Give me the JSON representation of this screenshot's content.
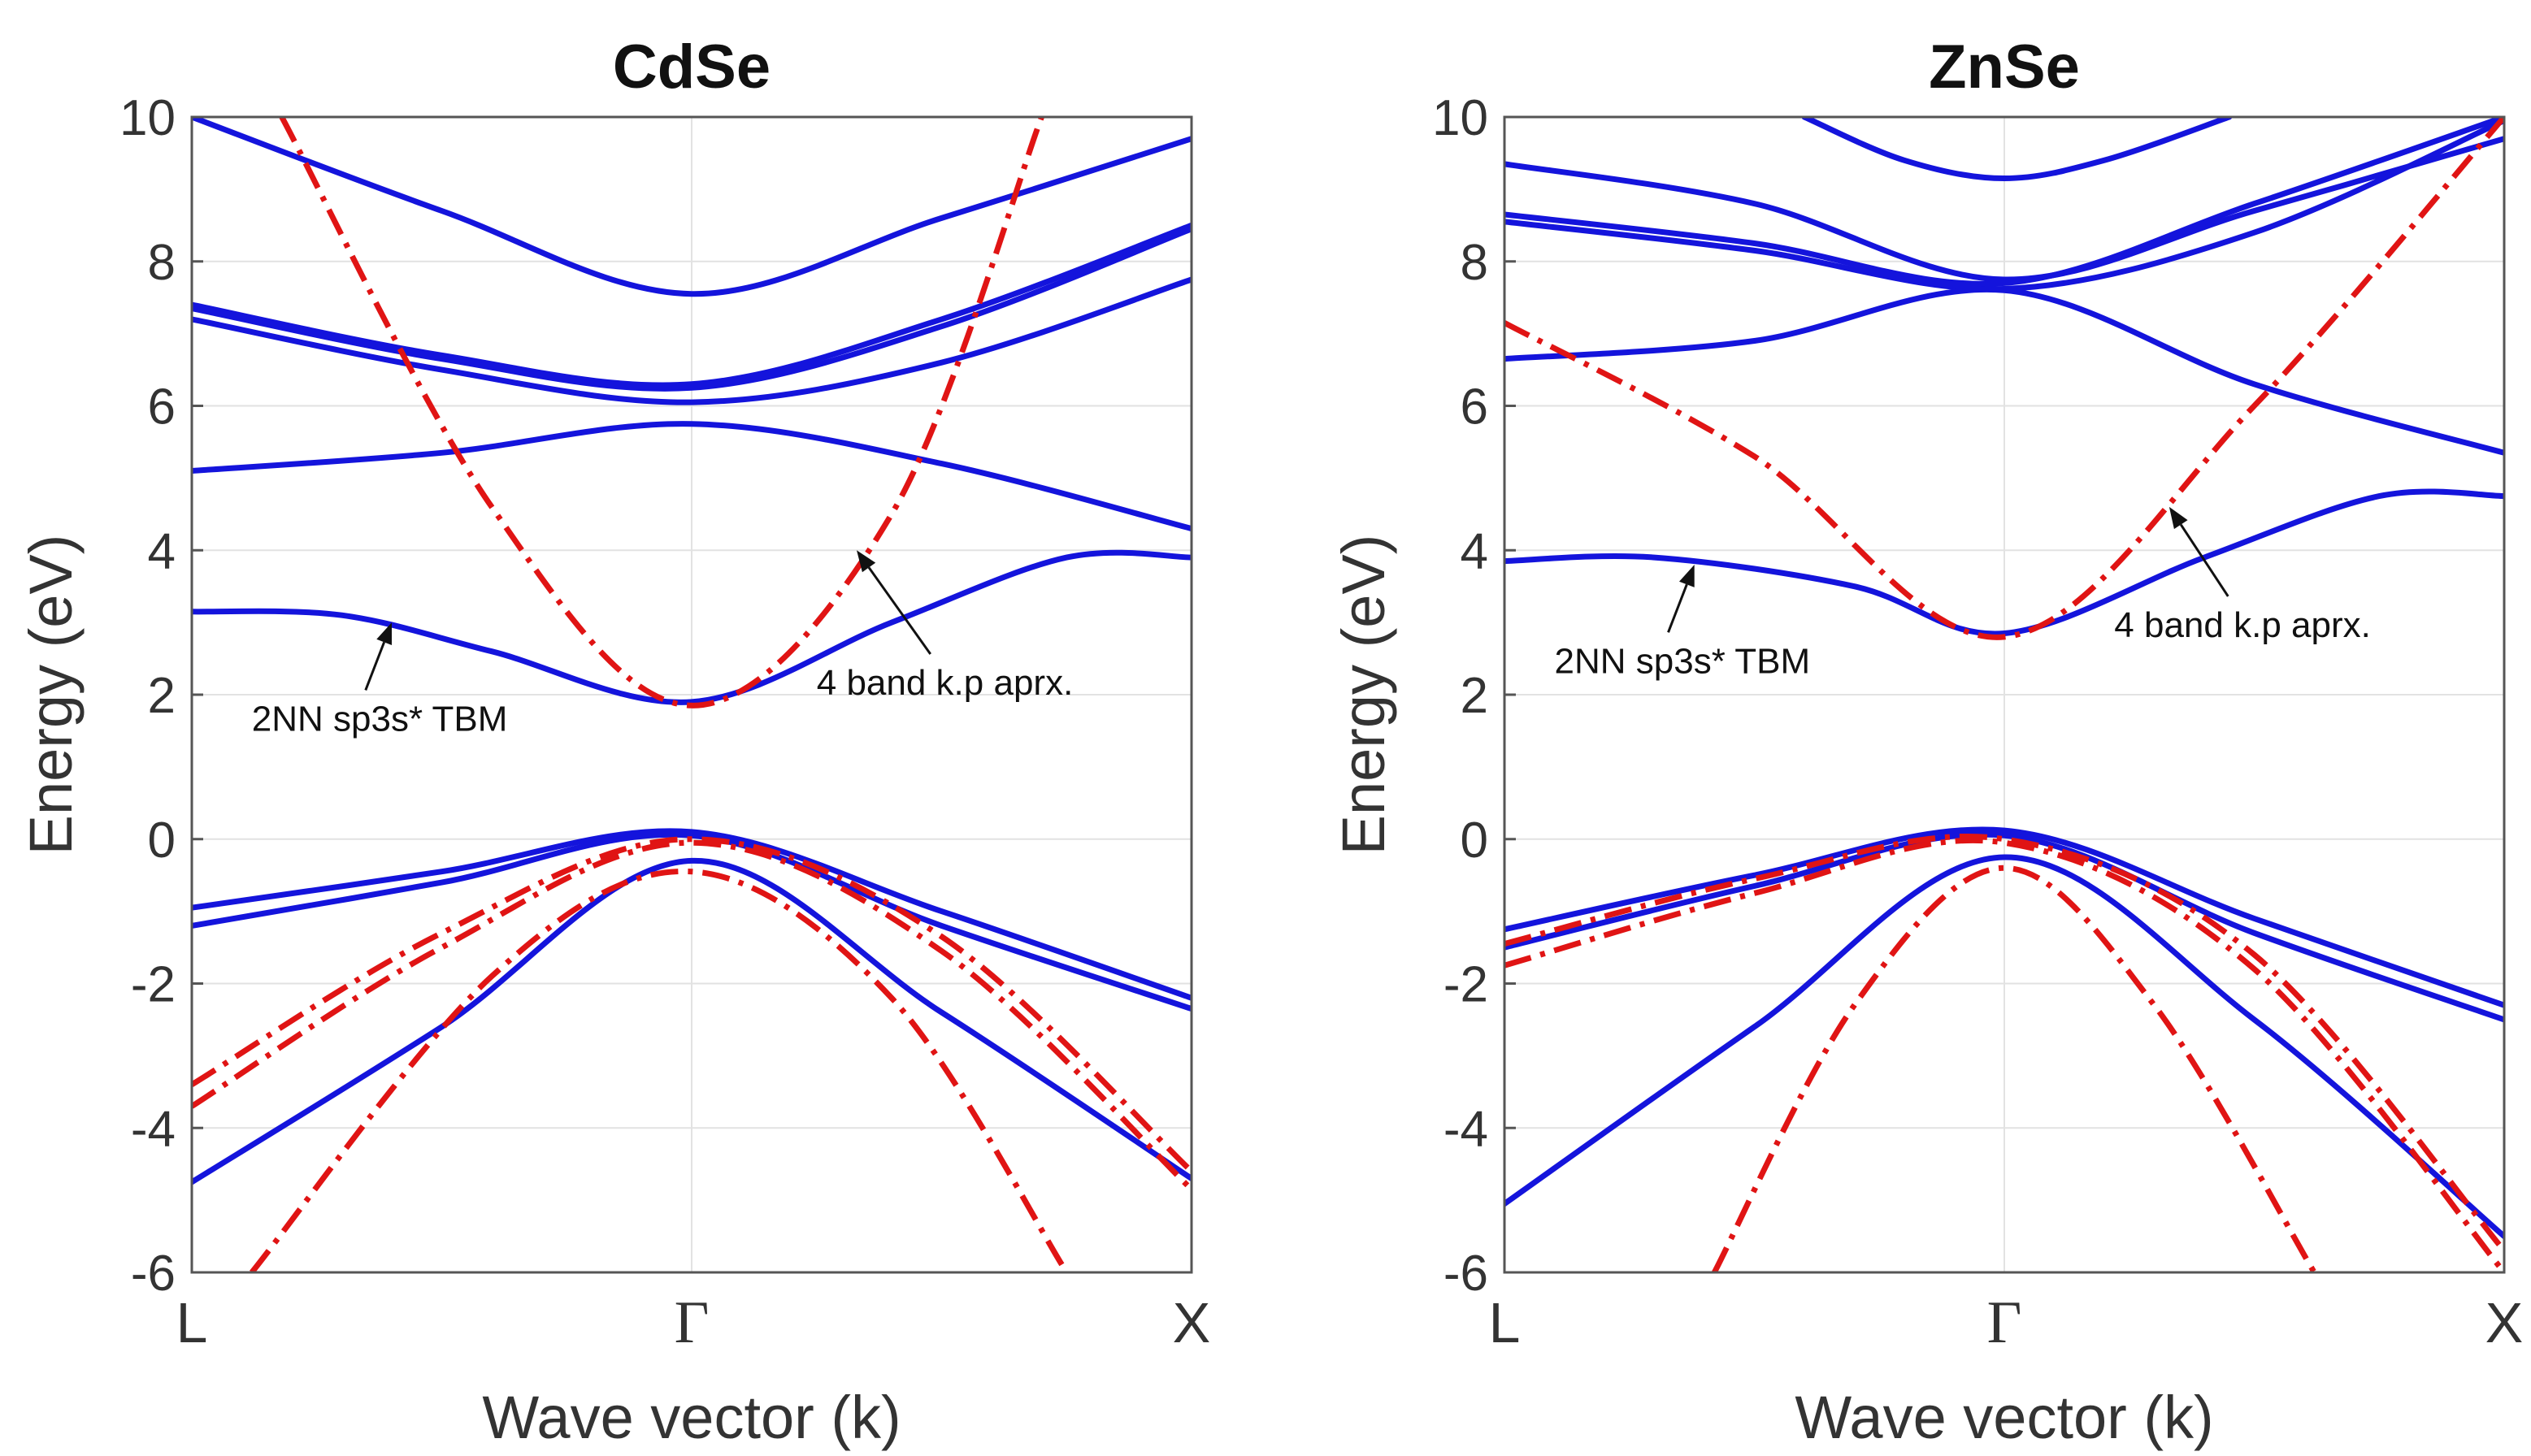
{
  "chart_data": [
    {
      "type": "line",
      "title": "CdSe",
      "xlabel": "Wave vector (k)",
      "ylabel": "Energy (eV)",
      "xlim": [
        0,
        2
      ],
      "ylim": [
        -6,
        10
      ],
      "x_ticks": [
        {
          "x": 0,
          "label": "L"
        },
        {
          "x": 1,
          "label": "Γ"
        },
        {
          "x": 2,
          "label": "X"
        }
      ],
      "y_ticks": [
        10,
        8,
        6,
        4,
        2,
        0,
        -2,
        -4,
        -6
      ],
      "grid": true,
      "series": [
        {
          "name": "2NN sp3s* TBM",
          "style": "solid",
          "color": "#1414dc",
          "bands": [
            [
              [
                0,
                10.0
              ],
              [
                0.5,
                8.7
              ],
              [
                1,
                7.55
              ],
              [
                1.5,
                8.6
              ],
              [
                2,
                9.7
              ]
            ],
            [
              [
                0,
                7.4
              ],
              [
                0.5,
                6.7
              ],
              [
                1,
                6.3
              ],
              [
                1.5,
                7.2
              ],
              [
                2,
                8.5
              ]
            ],
            [
              [
                0,
                7.35
              ],
              [
                0.5,
                6.65
              ],
              [
                1,
                6.25
              ],
              [
                1.5,
                7.1
              ],
              [
                2,
                8.45
              ]
            ],
            [
              [
                0,
                7.2
              ],
              [
                0.5,
                6.5
              ],
              [
                1,
                6.05
              ],
              [
                1.5,
                6.6
              ],
              [
                2,
                7.75
              ]
            ],
            [
              [
                0,
                5.1
              ],
              [
                0.5,
                5.35
              ],
              [
                1,
                5.75
              ],
              [
                1.5,
                5.2
              ],
              [
                2,
                4.3
              ]
            ],
            [
              [
                0,
                3.15
              ],
              [
                0.3,
                3.1
              ],
              [
                0.6,
                2.6
              ],
              [
                1,
                1.9
              ],
              [
                1.4,
                3.0
              ],
              [
                1.75,
                3.9
              ],
              [
                2,
                3.9
              ]
            ],
            [
              [
                0,
                -0.95
              ],
              [
                0.5,
                -0.45
              ],
              [
                1,
                0.1
              ],
              [
                1.5,
                -1.0
              ],
              [
                2,
                -2.2
              ]
            ],
            [
              [
                0,
                -1.2
              ],
              [
                0.5,
                -0.6
              ],
              [
                1,
                0.05
              ],
              [
                1.5,
                -1.2
              ],
              [
                2,
                -2.35
              ]
            ],
            [
              [
                0,
                -4.75
              ],
              [
                0.5,
                -2.6
              ],
              [
                1,
                -0.3
              ],
              [
                1.5,
                -2.4
              ],
              [
                2,
                -4.7
              ]
            ]
          ]
        },
        {
          "name": "4 band k.p aprx.",
          "style": "dashdot",
          "color": "#e01414",
          "bands": [
            [
              [
                0.18,
                10.0
              ],
              [
                0.6,
                4.6
              ],
              [
                1,
                1.85
              ],
              [
                1.4,
                4.5
              ],
              [
                1.7,
                10.0
              ]
            ],
            [
              [
                0,
                -3.4
              ],
              [
                0.5,
                -1.3
              ],
              [
                1,
                0.0
              ],
              [
                1.5,
                -1.35
              ],
              [
                2,
                -4.6
              ]
            ],
            [
              [
                0,
                -3.7
              ],
              [
                0.5,
                -1.5
              ],
              [
                1,
                -0.05
              ],
              [
                1.5,
                -1.55
              ],
              [
                2,
                -4.85
              ]
            ],
            [
              [
                0.12,
                -6.0
              ],
              [
                0.6,
                -1.9
              ],
              [
                1,
                -0.45
              ],
              [
                1.4,
                -2.2
              ],
              [
                1.75,
                -6.0
              ]
            ]
          ]
        }
      ],
      "annotations": [
        {
          "text": "2NN sp3s* TBM",
          "x": 0.4,
          "y": 3.0,
          "label_x": 0.12,
          "label_y": 1.5
        },
        {
          "text": "4 band k.p aprx.",
          "x": 1.33,
          "y": 4.0,
          "label_x": 1.25,
          "label_y": 2.0
        }
      ]
    },
    {
      "type": "line",
      "title": "ZnSe",
      "xlabel": "Wave vector (k)",
      "ylabel": "Energy (eV)",
      "xlim": [
        0,
        2
      ],
      "ylim": [
        -6,
        10
      ],
      "x_ticks": [
        {
          "x": 0,
          "label": "L"
        },
        {
          "x": 1,
          "label": "Γ"
        },
        {
          "x": 2,
          "label": "X"
        }
      ],
      "y_ticks": [
        10,
        8,
        6,
        4,
        2,
        0,
        -2,
        -4,
        -6
      ],
      "grid": true,
      "series": [
        {
          "name": "2NN sp3s* TBM",
          "style": "solid",
          "color": "#1414dc",
          "bands": [
            [
              [
                0.6,
                10.0
              ],
              [
                0.8,
                9.4
              ],
              [
                1,
                9.15
              ],
              [
                1.2,
                9.4
              ],
              [
                1.45,
                10.0
              ]
            ],
            [
              [
                0,
                9.35
              ],
              [
                0.5,
                8.8
              ],
              [
                1,
                7.75
              ],
              [
                1.5,
                8.7
              ],
              [
                2,
                9.7
              ]
            ],
            [
              [
                0,
                8.65
              ],
              [
                0.5,
                8.25
              ],
              [
                1,
                7.7
              ],
              [
                1.5,
                8.8
              ],
              [
                2,
                10.0
              ]
            ],
            [
              [
                0,
                8.55
              ],
              [
                0.5,
                8.15
              ],
              [
                1,
                7.62
              ],
              [
                1.5,
                8.4
              ],
              [
                2,
                9.95
              ]
            ],
            [
              [
                0,
                6.65
              ],
              [
                0.5,
                6.9
              ],
              [
                1,
                7.6
              ],
              [
                1.5,
                6.3
              ],
              [
                2,
                5.35
              ]
            ],
            [
              [
                0,
                3.85
              ],
              [
                0.3,
                3.9
              ],
              [
                0.7,
                3.5
              ],
              [
                1,
                2.85
              ],
              [
                1.4,
                3.9
              ],
              [
                1.75,
                4.75
              ],
              [
                2,
                4.75
              ]
            ],
            [
              [
                0,
                -1.25
              ],
              [
                0.5,
                -0.5
              ],
              [
                1,
                0.12
              ],
              [
                1.5,
                -1.1
              ],
              [
                2,
                -2.3
              ]
            ],
            [
              [
                0,
                -1.5
              ],
              [
                0.5,
                -0.65
              ],
              [
                1,
                0.05
              ],
              [
                1.5,
                -1.3
              ],
              [
                2,
                -2.5
              ]
            ],
            [
              [
                0,
                -5.05
              ],
              [
                0.5,
                -2.6
              ],
              [
                1,
                -0.25
              ],
              [
                1.5,
                -2.5
              ],
              [
                2,
                -5.5
              ]
            ]
          ]
        },
        {
          "name": "4 band k.p aprx.",
          "style": "dashdot",
          "color": "#e01414",
          "bands": [
            [
              [
                0,
                7.15
              ],
              [
                0.5,
                5.3
              ],
              [
                1,
                2.8
              ],
              [
                1.5,
                6.0
              ],
              [
                2,
                10.0
              ]
            ],
            [
              [
                0,
                -1.45
              ],
              [
                0.5,
                -0.55
              ],
              [
                1,
                0.0
              ],
              [
                1.5,
                -1.6
              ],
              [
                2,
                -5.7
              ]
            ],
            [
              [
                0,
                -1.75
              ],
              [
                0.5,
                -0.75
              ],
              [
                1,
                -0.05
              ],
              [
                1.5,
                -1.8
              ],
              [
                2,
                -6.0
              ]
            ],
            [
              [
                0.42,
                -6.0
              ],
              [
                0.7,
                -2.3
              ],
              [
                1,
                -0.4
              ],
              [
                1.3,
                -2.3
              ],
              [
                1.62,
                -6.0
              ]
            ]
          ]
        }
      ],
      "annotations": [
        {
          "text": "2NN sp3s* TBM",
          "x": 0.38,
          "y": 3.8,
          "label_x": 0.1,
          "label_y": 2.3
        },
        {
          "text": "4 band k.p aprx.",
          "x": 1.33,
          "y": 4.6,
          "label_x": 1.22,
          "label_y": 2.8
        }
      ]
    }
  ]
}
